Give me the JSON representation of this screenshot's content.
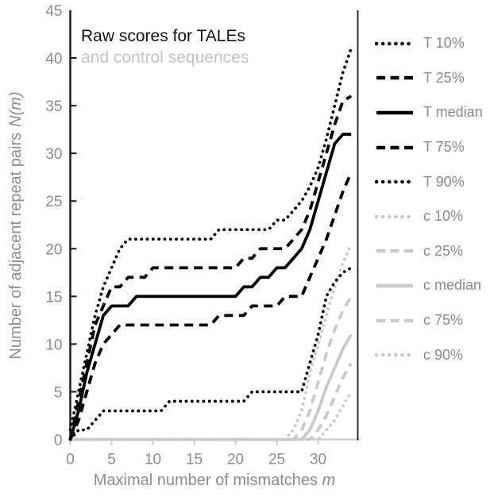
{
  "colors": {
    "tale": "#000000",
    "control": "#c9c9c9",
    "axis_line": "#1a1a1a",
    "baseline": "#c9c9c9",
    "axis_text": "#8c8c8c",
    "title_primary": "#111111",
    "title_secondary": "#c3c3c3"
  },
  "chart_data": {
    "type": "line",
    "title_line1": "Raw scores for TALEs",
    "title_line2": "and control sequences",
    "xlabel": "Maximal number of mismatches m",
    "ylabel": "Number of adjacent repeat pairs N(m)",
    "xlabel_text": "Maximal number of mismatches ",
    "xlabel_math": "m",
    "ylabel_text": "Number of adjacent repeat pairs",
    "ylabel_math": "N(m)",
    "x_ticks": [
      0,
      5,
      10,
      15,
      20,
      25,
      30
    ],
    "y_ticks": [
      0,
      5,
      10,
      15,
      20,
      25,
      30,
      35,
      40,
      45
    ],
    "xlim": [
      0,
      34.8
    ],
    "ylim": [
      0,
      45
    ],
    "grid": false,
    "legend_position": "right",
    "x": [
      0,
      1,
      2,
      3,
      4,
      5,
      6,
      7,
      8,
      9,
      10,
      11,
      12,
      13,
      14,
      15,
      16,
      17,
      18,
      19,
      20,
      21,
      22,
      23,
      24,
      25,
      26,
      27,
      28,
      29,
      30,
      31,
      32,
      33,
      34
    ],
    "series": [
      {
        "name": "T 10%",
        "style": "dotted",
        "color_key": "tale",
        "values": [
          0,
          1,
          1,
          2,
          3,
          3,
          3,
          3,
          3,
          3,
          3,
          3,
          4,
          4,
          4,
          4,
          4,
          4,
          4,
          4,
          4,
          4,
          5,
          5,
          5,
          5,
          5,
          5,
          5,
          8,
          11,
          15,
          16.5,
          17.5,
          18
        ]
      },
      {
        "name": "T 25%",
        "style": "dashed",
        "color_key": "tale",
        "values": [
          0,
          2,
          5,
          8,
          10,
          11,
          12,
          12,
          12,
          12,
          12,
          12,
          12,
          12,
          12,
          12,
          12,
          12,
          13,
          13,
          13,
          13,
          14,
          14,
          14,
          14,
          15,
          15,
          15,
          17,
          19,
          21,
          23.5,
          26,
          28
        ]
      },
      {
        "name": "T median",
        "style": "solid",
        "color_key": "tale",
        "values": [
          0,
          3,
          7,
          10,
          13,
          14,
          14,
          14,
          15,
          15,
          15,
          15,
          15,
          15,
          15,
          15,
          15,
          15,
          15,
          15,
          15,
          16,
          16,
          17,
          17,
          18,
          18,
          19,
          20,
          22,
          25,
          28,
          31,
          32,
          32
        ]
      },
      {
        "name": "T 75%",
        "style": "dashed",
        "color_key": "tale",
        "values": [
          0,
          4,
          8,
          12,
          14,
          16,
          16,
          17,
          17,
          17,
          18,
          18,
          18,
          18,
          18,
          18,
          18,
          18,
          18,
          18,
          18,
          19,
          19,
          20,
          20,
          20,
          20,
          21,
          22,
          24,
          27,
          30,
          33,
          35.5,
          36
        ]
      },
      {
        "name": "T 90%",
        "style": "dotted",
        "color_key": "tale",
        "values": [
          1,
          5,
          9,
          13,
          16,
          18,
          20,
          21,
          21,
          21,
          21,
          21,
          21,
          21,
          21,
          21,
          21,
          21,
          22,
          22,
          22,
          22,
          22,
          22,
          22,
          23,
          23,
          24,
          25,
          26.5,
          28.5,
          31.5,
          35,
          38.5,
          41
        ]
      },
      {
        "name": "c 10%",
        "style": "dotted",
        "color_key": "control",
        "values": [
          0,
          0,
          0,
          0,
          0,
          0,
          0,
          0,
          0,
          0,
          0,
          0,
          0,
          0,
          0,
          0,
          0,
          0,
          0,
          0,
          0,
          0,
          0,
          0,
          0,
          0,
          0,
          0,
          0,
          0,
          0,
          1,
          2,
          3.5,
          5
        ]
      },
      {
        "name": "c 25%",
        "style": "dashed",
        "color_key": "control",
        "values": [
          0,
          0,
          0,
          0,
          0,
          0,
          0,
          0,
          0,
          0,
          0,
          0,
          0,
          0,
          0,
          0,
          0,
          0,
          0,
          0,
          0,
          0,
          0,
          0,
          0,
          0,
          0,
          0,
          0,
          0,
          1,
          2.5,
          4.5,
          6.5,
          8
        ]
      },
      {
        "name": "c median",
        "style": "solid",
        "color_key": "control",
        "values": [
          0,
          0,
          0,
          0,
          0,
          0,
          0,
          0,
          0,
          0,
          0,
          0,
          0,
          0,
          0,
          0,
          0,
          0,
          0,
          0,
          0,
          0,
          0,
          0,
          0,
          0,
          0,
          0,
          0,
          1,
          3,
          5.5,
          7.5,
          9.5,
          11
        ]
      },
      {
        "name": "c 75%",
        "style": "dashed",
        "color_key": "control",
        "values": [
          0,
          0,
          0,
          0,
          0,
          0,
          0,
          0,
          0,
          0,
          0,
          0,
          0,
          0,
          0,
          0,
          0,
          0,
          0,
          0,
          0,
          0,
          0,
          0,
          0,
          0,
          0,
          0,
          1,
          3,
          6,
          9,
          11.5,
          13.5,
          15
        ]
      },
      {
        "name": "c 90%",
        "style": "dotted",
        "color_key": "control",
        "values": [
          0,
          0,
          0,
          0,
          0,
          0,
          0,
          0,
          0,
          0,
          0,
          0,
          0,
          0,
          0,
          0,
          0,
          0,
          0,
          0,
          0,
          0,
          0,
          0,
          0,
          0,
          0,
          1,
          3,
          7,
          10,
          13,
          16,
          18.5,
          20.5
        ]
      }
    ],
    "legend": [
      "T 10%",
      "T 25%",
      "T median",
      "T 75%",
      "T 90%",
      "c 10%",
      "c 25%",
      "c median",
      "c 75%",
      "c 90%"
    ]
  }
}
